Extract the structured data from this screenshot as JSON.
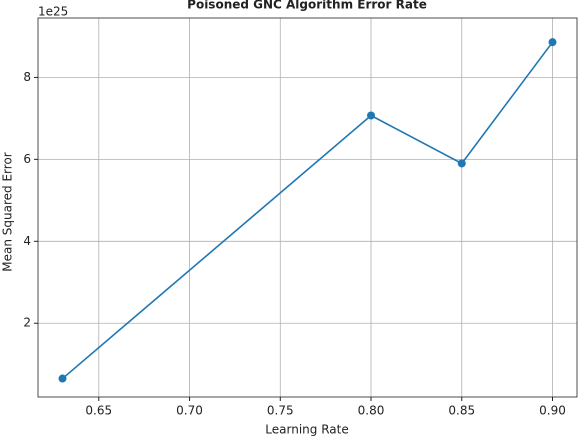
{
  "chart_data": {
    "type": "line",
    "title": "Poisoned GNC Algorithm Error Rate",
    "x_label": "Learning Rate",
    "y_label": "Mean Squared Error",
    "y_offset_label": "1e25",
    "x": [
      0.63,
      0.8,
      0.85,
      0.9
    ],
    "series": [
      {
        "color": "#1f77b4",
        "values": [
          0.65,
          7.07,
          5.9,
          8.86
        ]
      }
    ],
    "xlim": [
      0.6165,
      0.9135
    ],
    "xticks": [
      0.65,
      {
        "value": 0.7,
        "label": "0.70"
      },
      0.75,
      {
        "value": 0.8,
        "label": "0.80"
      },
      0.85,
      {
        "value": 0.9,
        "label": "0.90"
      }
    ],
    "ylim": [
      0.2,
      9.45
    ],
    "yticks": [
      2,
      4,
      6,
      8
    ],
    "grid": true
  }
}
